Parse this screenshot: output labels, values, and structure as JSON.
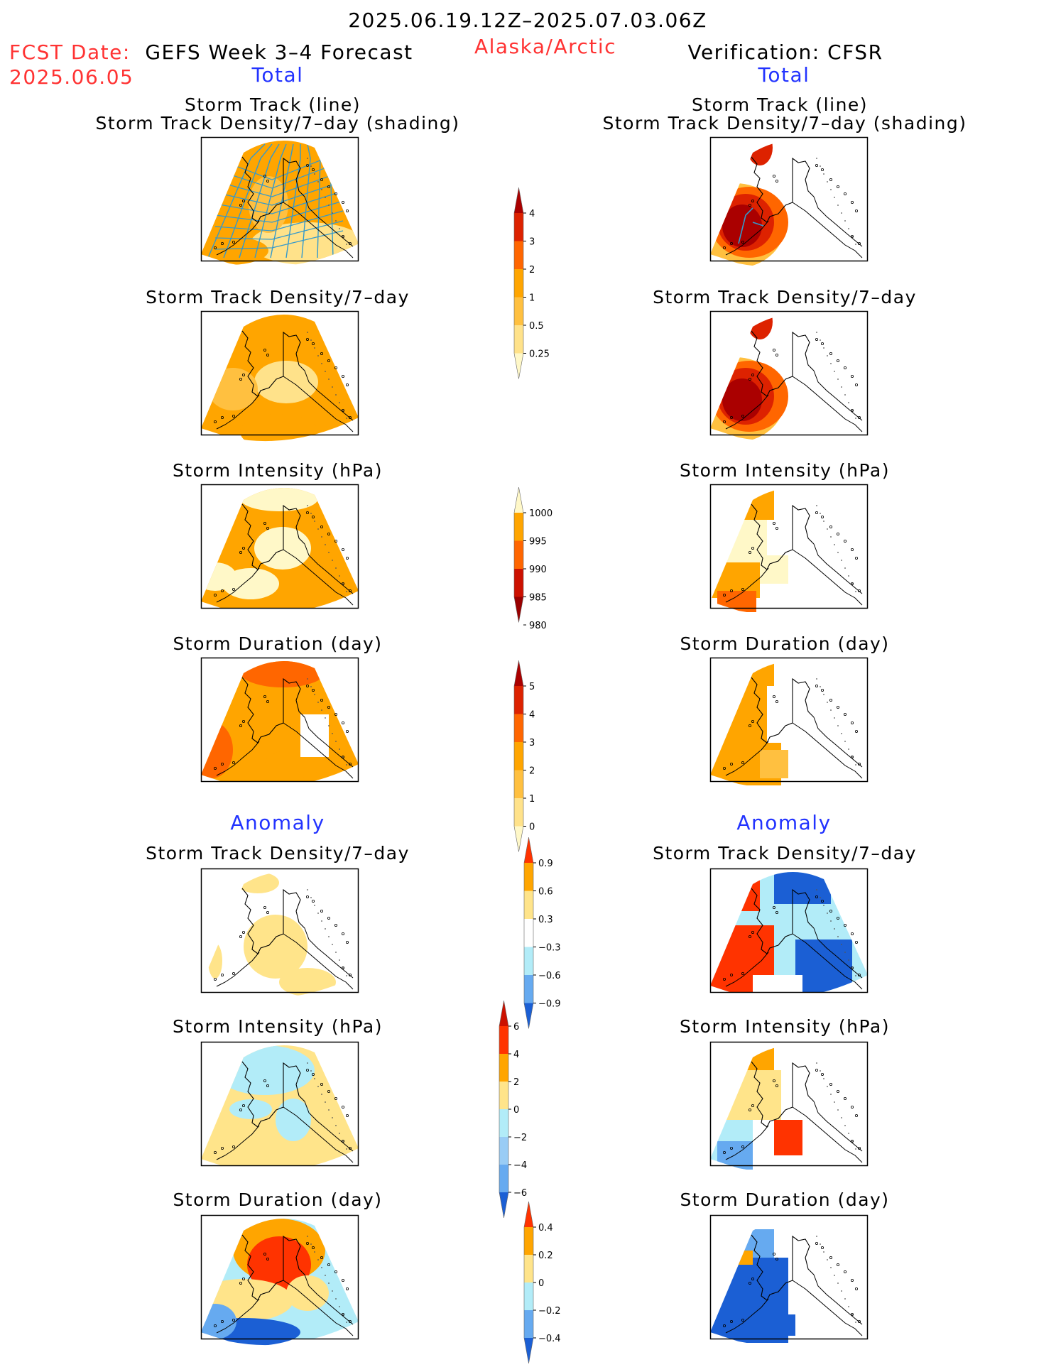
{
  "header": {
    "period": "2025.06.19.12Z–2025.07.03.06Z",
    "fcst_label": "FCST Date:",
    "fcst_date": "2025.06.05",
    "forecast_title": "GEFS Week 3–4 Forecast",
    "region": "Alaska/Arctic",
    "verification": "Verification: CFSR",
    "total_left": "Total",
    "total_right": "Total"
  },
  "sections": {
    "total": {
      "panels": [
        {
          "title_line1": "Storm Track (line)",
          "title_line2": "Storm Track Density/7–day (shading)"
        },
        {
          "title_line1": "Storm Track Density/7–day"
        },
        {
          "title_line1": "Storm Intensity (hPa)"
        },
        {
          "title_line1": "Storm Duration (day)"
        }
      ]
    },
    "anomaly": {
      "label_left": "Anomaly",
      "label_right": "Anomaly",
      "panels": [
        {
          "title_line1": "Storm Track Density/7–day"
        },
        {
          "title_line1": "Storm Intensity (hPa)"
        },
        {
          "title_line1": "Storm Duration (day)"
        }
      ]
    }
  },
  "colorbars": [
    {
      "id": "density-total",
      "ticks": [
        "4",
        "3",
        "2",
        "1",
        "0.5",
        "0.25"
      ],
      "colors": [
        "#aa0000",
        "#dd2200",
        "#ff6600",
        "#ffa500",
        "#ffc040",
        "#ffe28a",
        "#fff8c8"
      ]
    },
    {
      "id": "intensity-total",
      "ticks": [
        "1000",
        "995",
        "990",
        "985",
        "980"
      ],
      "colors": [
        "#fff8c8",
        "#ffa500",
        "#ff6600",
        "#cc1100",
        "#990000"
      ]
    },
    {
      "id": "duration-total",
      "ticks": [
        "5",
        "4",
        "3",
        "2",
        "1",
        "0"
      ],
      "colors": [
        "#aa0000",
        "#dd2200",
        "#ff6600",
        "#ffa500",
        "#ffc040",
        "#ffe28a",
        "#fff8c8"
      ]
    },
    {
      "id": "density-anom",
      "ticks": [
        "0.9",
        "0.6",
        "0.3",
        "−0.3",
        "−0.6",
        "−0.9"
      ],
      "colors": [
        "#ff3300",
        "#ffa500",
        "#ffe48a",
        "#ffffff",
        "#b2ecf8",
        "#66aaf0",
        "#1b5fd4"
      ]
    },
    {
      "id": "intensity-anom",
      "ticks": [
        "6",
        "4",
        "2",
        "0",
        "−2",
        "−4",
        "−6"
      ],
      "colors": [
        "#cc1100",
        "#ff3300",
        "#ffa500",
        "#ffe48a",
        "#b2ecf8",
        "#99ccf5",
        "#66aaf0",
        "#1b5fd4"
      ]
    },
    {
      "id": "duration-anom",
      "ticks": [
        "0.4",
        "0.2",
        "0",
        "−0.2",
        "−0.4"
      ],
      "colors": [
        "#ff3300",
        "#ffa500",
        "#ffe48a",
        "#b2ecf8",
        "#66aaf0",
        "#1b5fd4"
      ]
    }
  ],
  "colors": {
    "red_text": "#ff3333",
    "blue_text": "#2233ff",
    "track_line": "#3399cc"
  }
}
